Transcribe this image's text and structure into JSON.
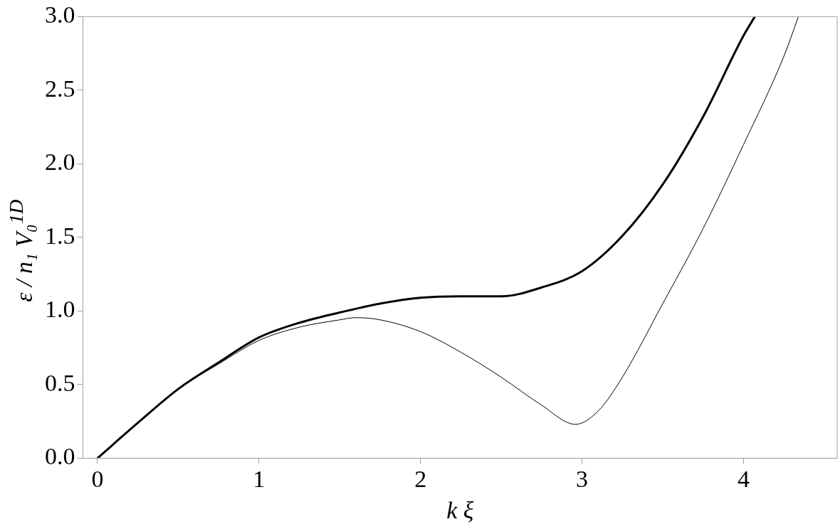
{
  "chart_data": {
    "type": "line",
    "xlabel": "k ξ",
    "ylabel": "ε / n₁ V₀$^{1D}$",
    "xlim": [
      -0.09,
      4.58
    ],
    "xticks": [
      0,
      1,
      2,
      3,
      4
    ],
    "ylim": [
      0,
      3
    ],
    "yticks": [
      {
        "value": 0,
        "label": "0.0"
      },
      {
        "value": 0.5,
        "label": "0.5"
      },
      {
        "value": 1,
        "label": "1.0"
      },
      {
        "value": 1.5,
        "label": "1.5"
      },
      {
        "value": 2,
        "label": "2.0"
      },
      {
        "value": 2.5,
        "label": "2.5"
      },
      {
        "value": 3,
        "label": "3.0"
      }
    ],
    "grid": false,
    "legend": false,
    "marker": "none",
    "line_style": "solid",
    "series": [
      {
        "color": "#000000",
        "x": [
          0,
          0.25,
          0.5,
          0.75,
          1,
          1.25,
          1.5,
          1.75,
          2,
          2.25,
          2.5,
          2.75,
          3,
          3.25,
          3.5,
          3.75,
          4,
          4.07
        ],
        "values": [
          0,
          0.24,
          0.47,
          0.65,
          0.82,
          0.92,
          0.99,
          1.05,
          1.09,
          1.1,
          1.1,
          1.16,
          1.27,
          1.51,
          1.86,
          2.32,
          2.87,
          3
        ]
      },
      {
        "color": "#000000",
        "x": [
          0,
          0.25,
          0.5,
          0.75,
          1,
          1.25,
          1.5,
          1.6,
          1.75,
          2,
          2.25,
          2.5,
          2.75,
          2.96,
          3.1,
          3.25,
          3.5,
          3.75,
          4,
          4.25,
          4.34
        ],
        "values": [
          0,
          0.24,
          0.47,
          0.64,
          0.8,
          0.89,
          0.94,
          0.955,
          0.94,
          0.86,
          0.72,
          0.55,
          0.36,
          0.23,
          0.32,
          0.55,
          1.05,
          1.56,
          2.13,
          2.73,
          3
        ]
      }
    ]
  }
}
